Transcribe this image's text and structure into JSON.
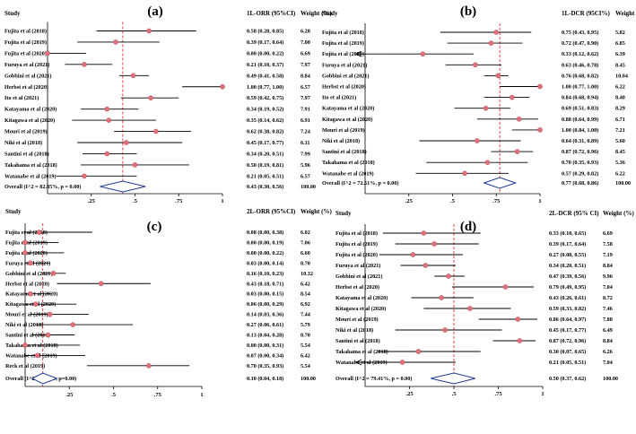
{
  "chart_data": [
    {
      "type": "forest",
      "panel_label": "(a)",
      "headers": {
        "study": "Study",
        "estimate": "1L-ORR (95%CI)",
        "weight": "Weight (%)"
      },
      "xticks": [
        {
          "value": 0.25,
          "label": ".25"
        },
        {
          "value": 0.5,
          "label": ".5"
        },
        {
          "value": 0.75,
          "label": ".75"
        },
        {
          "value": 1,
          "label": "1"
        }
      ],
      "xlim": [
        0,
        1
      ],
      "reference_line": 0.43,
      "studies": [
        {
          "name": "Fujita et al (2018)",
          "est": 0.58,
          "lo": 0.28,
          "hi": 0.85,
          "ci_text": "0.58 (0.28, 0.85)",
          "weight": "6.28"
        },
        {
          "name": "Fujita et al (2019)",
          "est": 0.39,
          "lo": 0.17,
          "hi": 0.64,
          "ci_text": "0.39 (0.17, 0.64)",
          "weight": "7.00"
        },
        {
          "name": "Fujita et al (2020)",
          "est": 0.0,
          "lo": 0.0,
          "hi": 0.22,
          "ci_text": "0.00 (0.00, 0.22)",
          "weight": "6.69"
        },
        {
          "name": "Furuya et al (2021)",
          "est": 0.21,
          "lo": 0.1,
          "hi": 0.37,
          "ci_text": "0.21 (0.10, 0.37)",
          "weight": "7.97"
        },
        {
          "name": "Gobbini et al (2021)",
          "est": 0.49,
          "lo": 0.41,
          "hi": 0.58,
          "ci_text": "0.49 (0.41, 0.58)",
          "weight": "8.84"
        },
        {
          "name": "Herbst et al (2020)",
          "est": 1.0,
          "lo": 0.77,
          "hi": 1.0,
          "ci_text": "1.00 (0.77, 1.00)",
          "weight": "6.57"
        },
        {
          "name": "Ito et al (2021)",
          "est": 0.59,
          "lo": 0.42,
          "hi": 0.75,
          "ci_text": "0.59 (0.42, 0.75)",
          "weight": "7.97"
        },
        {
          "name": "Katayama et al (2020)",
          "est": 0.34,
          "lo": 0.19,
          "hi": 0.52,
          "ci_text": "0.34 (0.19, 0.52)",
          "weight": "7.91"
        },
        {
          "name": "Kitagawa et al (2020)",
          "est": 0.35,
          "lo": 0.14,
          "hi": 0.62,
          "ci_text": "0.35 (0.14, 0.62)",
          "weight": "6.91"
        },
        {
          "name": "Mouri et al (2019)",
          "est": 0.62,
          "lo": 0.38,
          "hi": 0.82,
          "ci_text": "0.62 (0.38, 0.82)",
          "weight": "7.24"
        },
        {
          "name": "Niki et al (2018)",
          "est": 0.45,
          "lo": 0.17,
          "hi": 0.77,
          "ci_text": "0.45 (0.17, 0.77)",
          "weight": "6.11"
        },
        {
          "name": "Santini et al (2018)",
          "est": 0.34,
          "lo": 0.2,
          "hi": 0.51,
          "ci_text": "0.34 (0.20, 0.51)",
          "weight": "7.99"
        },
        {
          "name": "Takahama et al (2018)",
          "est": 0.5,
          "lo": 0.19,
          "hi": 0.81,
          "ci_text": "0.50 (0.19, 0.81)",
          "weight": "5.96"
        },
        {
          "name": "Watanabe et al (2019)",
          "est": 0.21,
          "lo": 0.05,
          "hi": 0.51,
          "ci_text": "0.21 (0.05, 0.51)",
          "weight": "6.57"
        }
      ],
      "overall": {
        "label": "Overall  (I^2 = 82.85%, p = 0.00)",
        "est": 0.43,
        "lo": 0.3,
        "hi": 0.56,
        "ci_text": "0.43 (0.30, 0.56)",
        "weight": "100.00"
      }
    },
    {
      "type": "forest",
      "panel_label": "(b)",
      "headers": {
        "study": "Study",
        "estimate": "1L-DCR (95CI%)",
        "weight": "Weight (%)"
      },
      "xticks": [
        {
          "value": 0.25,
          "label": ".25"
        },
        {
          "value": 0.5,
          "label": ".5"
        },
        {
          "value": 0.75,
          "label": ".75"
        },
        {
          "value": 1,
          "label": "1"
        }
      ],
      "xlim": [
        0,
        1
      ],
      "reference_line": 0.77,
      "studies": [
        {
          "name": "Fujita et al (2018)",
          "est": 0.75,
          "lo": 0.43,
          "hi": 0.95,
          "ci_text": "0.75 (0.43, 0.95)",
          "weight": "5.82"
        },
        {
          "name": "Fujita et al (2019)",
          "est": 0.72,
          "lo": 0.47,
          "hi": 0.9,
          "ci_text": "0.72 (0.47, 0.90)",
          "weight": "6.85"
        },
        {
          "name": "Fujita et al (2020)",
          "est": 0.33,
          "lo": 0.12,
          "hi": 0.62,
          "ci_text": "0.33 (0.12, 0.62)",
          "weight": "6.39",
          "arrow_left": true
        },
        {
          "name": "Furuya et al (2021)",
          "est": 0.63,
          "lo": 0.46,
          "hi": 0.78,
          "ci_text": "0.63 (0.46, 0.78)",
          "weight": "8.45"
        },
        {
          "name": "Gobbini et al (2021)",
          "est": 0.76,
          "lo": 0.68,
          "hi": 0.82,
          "ci_text": "0.76 (0.68, 0.82)",
          "weight": "10.04"
        },
        {
          "name": "Herbst et al (2020)",
          "est": 1.0,
          "lo": 0.77,
          "hi": 1.0,
          "ci_text": "1.00 (0.77, 1.00)",
          "weight": "6.22"
        },
        {
          "name": "Ito et al (2021)",
          "est": 0.84,
          "lo": 0.68,
          "hi": 0.94,
          "ci_text": "0.84 (0.68, 0.94)",
          "weight": "8.40"
        },
        {
          "name": "Katayama et al (2020)",
          "est": 0.69,
          "lo": 0.51,
          "hi": 0.83,
          "ci_text": "0.69 (0.51, 0.83)",
          "weight": "8.29"
        },
        {
          "name": "Kitagawa et al (2020)",
          "est": 0.88,
          "lo": 0.64,
          "hi": 0.99,
          "ci_text": "0.88 (0.64, 0.99)",
          "weight": "6.71"
        },
        {
          "name": "Mouri et al (2019)",
          "est": 1.0,
          "lo": 0.84,
          "hi": 1.0,
          "ci_text": "1.00 (0.84, 1.00)",
          "weight": "7.21"
        },
        {
          "name": "Niki et al (2018)",
          "est": 0.64,
          "lo": 0.31,
          "hi": 0.89,
          "ci_text": "0.64 (0.31, 0.89)",
          "weight": "5.60"
        },
        {
          "name": "Santini et al (2018)",
          "est": 0.87,
          "lo": 0.72,
          "hi": 0.96,
          "ci_text": "0.87 (0.72, 0.96)",
          "weight": "8.45"
        },
        {
          "name": "Takahama et al (2018)",
          "est": 0.7,
          "lo": 0.35,
          "hi": 0.93,
          "ci_text": "0.70 (0.35, 0.93)",
          "weight": "5.36"
        },
        {
          "name": "Watanabe et al (2019)",
          "est": 0.57,
          "lo": 0.29,
          "hi": 0.82,
          "ci_text": "0.57 (0.29, 0.82)",
          "weight": "6.22"
        }
      ],
      "overall": {
        "label": "Overall  (I^2 = 72.51%, p = 0.00)",
        "est": 0.77,
        "lo": 0.68,
        "hi": 0.86,
        "ci_text": "0.77 (0.68, 0.86)",
        "weight": "100.00"
      }
    },
    {
      "type": "forest",
      "panel_label": "(c)",
      "headers": {
        "study": "Study",
        "estimate": "2L-ORR (95%CI)",
        "weight": "Weight (%)"
      },
      "xticks": [
        {
          "value": 0.25,
          "label": ".25"
        },
        {
          "value": 0.5,
          "label": ".5"
        },
        {
          "value": 0.75,
          "label": ".75"
        },
        {
          "value": 1,
          "label": "1"
        }
      ],
      "xlim": [
        0,
        1
      ],
      "reference_line": 0.1,
      "studies": [
        {
          "name": "Fujita et al (2018)",
          "est": 0.08,
          "lo": 0.0,
          "hi": 0.38,
          "ci_text": "0.08 (0.00, 0.38)",
          "weight": "6.02"
        },
        {
          "name": "Fujita et al (2019)",
          "est": 0.0,
          "lo": 0.0,
          "hi": 0.19,
          "ci_text": "0.00 (0.00, 0.19)",
          "weight": "7.06"
        },
        {
          "name": "Fujita et al (2020)",
          "est": 0.0,
          "lo": 0.0,
          "hi": 0.22,
          "ci_text": "0.00 (0.00, 0.22)",
          "weight": "6.60"
        },
        {
          "name": "Furuya et al (2021)",
          "est": 0.03,
          "lo": 0.0,
          "hi": 0.14,
          "ci_text": "0.03 (0.00, 0.14)",
          "weight": "8.70"
        },
        {
          "name": "Gobbini et al (2021)",
          "est": 0.16,
          "lo": 0.1,
          "hi": 0.23,
          "ci_text": "0.16 (0.10, 0.23)",
          "weight": "10.32"
        },
        {
          "name": "Herbst et al (2020)",
          "est": 0.43,
          "lo": 0.18,
          "hi": 0.71,
          "ci_text": "0.43 (0.18, 0.71)",
          "weight": "6.42"
        },
        {
          "name": "Katayama et al (2020)",
          "est": 0.03,
          "lo": 0.0,
          "hi": 0.15,
          "ci_text": "0.03 (0.00, 0.15)",
          "weight": "8.54"
        },
        {
          "name": "Kitagawa et al (2020)",
          "est": 0.06,
          "lo": 0.0,
          "hi": 0.29,
          "ci_text": "0.06 (0.00, 0.29)",
          "weight": "6.92"
        },
        {
          "name": "Mouri et al (2019)",
          "est": 0.14,
          "lo": 0.03,
          "hi": 0.36,
          "ci_text": "0.14 (0.03, 0.36)",
          "weight": "7.44"
        },
        {
          "name": "Niki et al (2018)",
          "est": 0.27,
          "lo": 0.06,
          "hi": 0.61,
          "ci_text": "0.27 (0.06, 0.61)",
          "weight": "5.79"
        },
        {
          "name": "Santini et al (2018)",
          "est": 0.13,
          "lo": 0.04,
          "hi": 0.28,
          "ci_text": "0.13 (0.04, 0.28)",
          "weight": "8.70"
        },
        {
          "name": "Takahama et al (2018)",
          "est": 0.0,
          "lo": 0.0,
          "hi": 0.31,
          "ci_text": "0.00 (0.00, 0.31)",
          "weight": "5.54"
        },
        {
          "name": "Watanabe et al (2019)",
          "est": 0.07,
          "lo": 0.0,
          "hi": 0.34,
          "ci_text": "0.07 (0.00, 0.34)",
          "weight": "6.42"
        },
        {
          "name": "Reck et al (2019)",
          "est": 0.7,
          "lo": 0.35,
          "hi": 0.93,
          "ci_text": "0.70 (0.35, 0.93)",
          "weight": "5.54"
        }
      ],
      "overall": {
        "label": "Overall  (I^2=71.13%, p=0.00)",
        "est": 0.1,
        "lo": 0.04,
        "hi": 0.18,
        "ci_text": "0.10 (0.04, 0.18)",
        "weight": "100.00"
      }
    },
    {
      "type": "forest",
      "panel_label": "(d)",
      "headers": {
        "study": "Study",
        "estimate": "2L-DCR (95% CI)",
        "weight": "Weight (%)"
      },
      "xticks": [
        {
          "value": 0.25,
          "label": ".25"
        },
        {
          "value": 0.5,
          "label": ".5"
        },
        {
          "value": 0.75,
          "label": ".75"
        },
        {
          "value": 1,
          "label": "1"
        }
      ],
      "xlim": [
        0,
        1
      ],
      "reference_line": 0.5,
      "studies": [
        {
          "name": "Fujita et al (2018)",
          "est": 0.33,
          "lo": 0.1,
          "hi": 0.65,
          "ci_text": "0.33 (0.10, 0.65)",
          "weight": "6.69"
        },
        {
          "name": "Fujita et al (2019)",
          "est": 0.39,
          "lo": 0.17,
          "hi": 0.64,
          "ci_text": "0.39 (0.17, 0.64)",
          "weight": "7.58"
        },
        {
          "name": "Fujita et al (2020)",
          "est": 0.27,
          "lo": 0.08,
          "hi": 0.55,
          "ci_text": "0.27 (0.08, 0.55)",
          "weight": "7.19"
        },
        {
          "name": "Furuya et al (2021)",
          "est": 0.34,
          "lo": 0.2,
          "hi": 0.51,
          "ci_text": "0.34 (0.20, 0.51)",
          "weight": "8.84"
        },
        {
          "name": "Gobbini et al (2021)",
          "est": 0.47,
          "lo": 0.39,
          "hi": 0.56,
          "ci_text": "0.47 (0.39, 0.56)",
          "weight": "9.96"
        },
        {
          "name": "Herbst et al (2020)",
          "est": 0.79,
          "lo": 0.49,
          "hi": 0.95,
          "ci_text": "0.79 (0.49, 0.95)",
          "weight": "7.04"
        },
        {
          "name": "Katayama et al (2020)",
          "est": 0.43,
          "lo": 0.26,
          "hi": 0.61,
          "ci_text": "0.43 (0.26, 0.61)",
          "weight": "8.72"
        },
        {
          "name": "Kitagawa et al (2020)",
          "est": 0.59,
          "lo": 0.33,
          "hi": 0.82,
          "ci_text": "0.59 (0.33, 0.82)",
          "weight": "7.46"
        },
        {
          "name": "Mouri et al (2019)",
          "est": 0.86,
          "lo": 0.64,
          "hi": 0.97,
          "ci_text": "0.86 (0.64, 0.97)",
          "weight": "7.88"
        },
        {
          "name": "Niki et al (2018)",
          "est": 0.45,
          "lo": 0.17,
          "hi": 0.77,
          "ci_text": "0.45 (0.17, 0.77)",
          "weight": "6.49"
        },
        {
          "name": "Santini et al (2018)",
          "est": 0.87,
          "lo": 0.72,
          "hi": 0.96,
          "ci_text": "0.87 (0.72, 0.96)",
          "weight": "8.84"
        },
        {
          "name": "Takahama et al (2018)",
          "est": 0.3,
          "lo": 0.07,
          "hi": 0.65,
          "ci_text": "0.30 (0.07, 0.65)",
          "weight": "6.26"
        },
        {
          "name": "Watanabe et al (2019)",
          "est": 0.21,
          "lo": 0.05,
          "hi": 0.51,
          "ci_text": "0.21 (0.05, 0.51)",
          "weight": "7.04",
          "arrow_left": true
        }
      ],
      "overall": {
        "label": "Overall  (I^2 = 79.41%, p = 0.00)",
        "est": 0.5,
        "lo": 0.37,
        "hi": 0.62,
        "ci_text": "0.50 (0.37, 0.62)",
        "weight": "100.00"
      }
    }
  ],
  "colors": {
    "marker": "#e0717a",
    "reference_line": "#e0303a",
    "diamond": "#1f3a93",
    "axis": "#000000"
  }
}
